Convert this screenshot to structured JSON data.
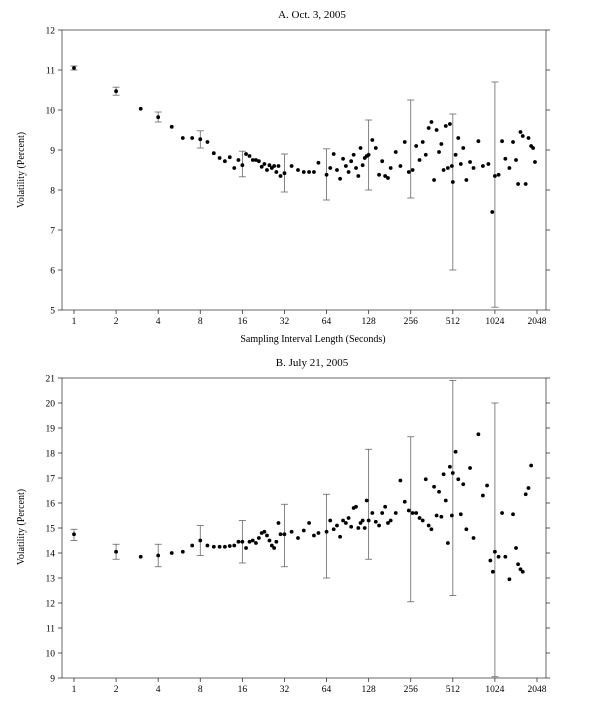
{
  "chart_data": [
    {
      "type": "scatter",
      "title": "A. Oct. 3, 2005",
      "xlabel": "Sampling Interval Length (Seconds)",
      "ylabel": "Volatility (Percent)",
      "x_scale": "log2",
      "xlim": [
        1,
        2048
      ],
      "ylim": [
        5,
        12
      ],
      "xticks": [
        1,
        2,
        4,
        8,
        16,
        32,
        64,
        128,
        256,
        512,
        1024,
        2048
      ],
      "yticks": [
        5,
        6,
        7,
        8,
        9,
        10,
        11,
        12
      ],
      "grid": false,
      "points": [
        [
          1,
          11.05
        ],
        [
          2,
          10.47
        ],
        [
          3,
          10.03
        ],
        [
          4,
          9.82
        ],
        [
          5,
          9.58
        ],
        [
          6,
          9.3
        ],
        [
          7,
          9.3
        ],
        [
          8,
          9.27
        ],
        [
          9,
          9.2
        ],
        [
          10,
          8.92
        ],
        [
          11,
          8.8
        ],
        [
          12,
          8.72
        ],
        [
          13,
          8.82
        ],
        [
          14,
          8.55
        ],
        [
          15,
          8.75
        ],
        [
          16,
          8.62
        ],
        [
          17,
          8.9
        ],
        [
          18,
          8.85
        ],
        [
          19,
          8.75
        ],
        [
          20,
          8.75
        ],
        [
          21,
          8.72
        ],
        [
          22,
          8.58
        ],
        [
          23,
          8.65
        ],
        [
          24,
          8.5
        ],
        [
          25,
          8.62
        ],
        [
          26,
          8.55
        ],
        [
          27,
          8.6
        ],
        [
          28,
          8.45
        ],
        [
          29,
          8.6
        ],
        [
          30,
          8.35
        ],
        [
          32,
          8.42
        ],
        [
          36,
          8.6
        ],
        [
          40,
          8.5
        ],
        [
          44,
          8.45
        ],
        [
          48,
          8.45
        ],
        [
          52,
          8.45
        ],
        [
          56,
          8.68
        ],
        [
          64,
          8.38
        ],
        [
          68,
          8.55
        ],
        [
          72,
          8.9
        ],
        [
          76,
          8.5
        ],
        [
          80,
          8.28
        ],
        [
          84,
          8.78
        ],
        [
          88,
          8.6
        ],
        [
          92,
          8.45
        ],
        [
          96,
          8.72
        ],
        [
          100,
          8.88
        ],
        [
          104,
          8.55
        ],
        [
          108,
          8.35
        ],
        [
          112,
          9.05
        ],
        [
          116,
          8.62
        ],
        [
          120,
          8.8
        ],
        [
          124,
          8.85
        ],
        [
          128,
          8.88
        ],
        [
          136,
          9.25
        ],
        [
          144,
          9.05
        ],
        [
          152,
          8.38
        ],
        [
          160,
          8.72
        ],
        [
          168,
          8.35
        ],
        [
          176,
          8.3
        ],
        [
          184,
          8.55
        ],
        [
          200,
          8.95
        ],
        [
          216,
          8.6
        ],
        [
          232,
          9.2
        ],
        [
          248,
          8.45
        ],
        [
          264,
          8.5
        ],
        [
          280,
          9.1
        ],
        [
          296,
          8.75
        ],
        [
          312,
          9.2
        ],
        [
          328,
          8.88
        ],
        [
          344,
          9.55
        ],
        [
          360,
          9.7
        ],
        [
          376,
          8.25
        ],
        [
          392,
          9.5
        ],
        [
          408,
          8.95
        ],
        [
          424,
          9.15
        ],
        [
          440,
          8.5
        ],
        [
          456,
          9.6
        ],
        [
          472,
          8.55
        ],
        [
          488,
          9.65
        ],
        [
          504,
          8.6
        ],
        [
          512,
          8.2
        ],
        [
          536,
          8.88
        ],
        [
          560,
          9.3
        ],
        [
          584,
          8.65
        ],
        [
          608,
          9.05
        ],
        [
          640,
          8.25
        ],
        [
          680,
          8.7
        ],
        [
          720,
          8.55
        ],
        [
          780,
          9.22
        ],
        [
          840,
          8.6
        ],
        [
          920,
          8.65
        ],
        [
          980,
          7.45
        ],
        [
          1024,
          8.35
        ],
        [
          1088,
          8.38
        ],
        [
          1152,
          9.22
        ],
        [
          1216,
          8.78
        ],
        [
          1300,
          8.55
        ],
        [
          1380,
          9.2
        ],
        [
          1450,
          8.75
        ],
        [
          1500,
          8.15
        ],
        [
          1560,
          9.45
        ],
        [
          1620,
          9.35
        ],
        [
          1700,
          8.15
        ],
        [
          1780,
          9.3
        ],
        [
          1860,
          9.1
        ],
        [
          1920,
          9.05
        ],
        [
          1980,
          8.7
        ]
      ],
      "error_bars": [
        {
          "x": 1,
          "low": 11.0,
          "high": 11.1
        },
        {
          "x": 2,
          "low": 10.37,
          "high": 10.57
        },
        {
          "x": 4,
          "low": 9.7,
          "high": 9.95
        },
        {
          "x": 8,
          "low": 9.05,
          "high": 9.48
        },
        {
          "x": 16,
          "low": 8.33,
          "high": 8.97
        },
        {
          "x": 32,
          "low": 7.95,
          "high": 8.9
        },
        {
          "x": 64,
          "low": 7.75,
          "high": 9.03
        },
        {
          "x": 128,
          "low": 8.0,
          "high": 9.75
        },
        {
          "x": 256,
          "low": 7.8,
          "high": 10.25
        },
        {
          "x": 512,
          "low": 6.0,
          "high": 9.9
        },
        {
          "x": 1024,
          "low": 5.07,
          "high": 10.7
        }
      ]
    },
    {
      "type": "scatter",
      "title": "B. July 21, 2005",
      "xlabel": "",
      "ylabel": "Volatility (Percent)",
      "x_scale": "log2",
      "xlim": [
        1,
        2048
      ],
      "ylim": [
        9,
        21
      ],
      "xticks": [
        1,
        2,
        4,
        8,
        16,
        32,
        64,
        128,
        256,
        512,
        1024,
        2048
      ],
      "yticks": [
        9,
        10,
        11,
        12,
        13,
        14,
        15,
        16,
        17,
        18,
        19,
        20,
        21
      ],
      "grid": false,
      "points": [
        [
          1,
          14.75
        ],
        [
          2,
          14.05
        ],
        [
          3,
          13.85
        ],
        [
          4,
          13.9
        ],
        [
          5,
          14.0
        ],
        [
          6,
          14.05
        ],
        [
          7,
          14.3
        ],
        [
          8,
          14.5
        ],
        [
          9,
          14.3
        ],
        [
          10,
          14.25
        ],
        [
          11,
          14.25
        ],
        [
          12,
          14.25
        ],
        [
          13,
          14.28
        ],
        [
          14,
          14.3
        ],
        [
          15,
          14.45
        ],
        [
          16,
          14.45
        ],
        [
          17,
          14.2
        ],
        [
          18,
          14.45
        ],
        [
          19,
          14.5
        ],
        [
          20,
          14.4
        ],
        [
          21,
          14.6
        ],
        [
          22,
          14.8
        ],
        [
          23,
          14.85
        ],
        [
          24,
          14.7
        ],
        [
          25,
          14.5
        ],
        [
          26,
          14.3
        ],
        [
          27,
          14.2
        ],
        [
          28,
          14.45
        ],
        [
          29,
          15.2
        ],
        [
          30,
          14.75
        ],
        [
          32,
          14.75
        ],
        [
          36,
          14.85
        ],
        [
          40,
          14.6
        ],
        [
          44,
          14.9
        ],
        [
          48,
          15.2
        ],
        [
          52,
          14.7
        ],
        [
          56,
          14.8
        ],
        [
          64,
          14.85
        ],
        [
          68,
          15.3
        ],
        [
          72,
          14.95
        ],
        [
          76,
          15.1
        ],
        [
          80,
          14.65
        ],
        [
          84,
          15.3
        ],
        [
          88,
          15.2
        ],
        [
          92,
          15.4
        ],
        [
          96,
          15.05
        ],
        [
          100,
          15.8
        ],
        [
          104,
          15.85
        ],
        [
          108,
          15.0
        ],
        [
          112,
          15.2
        ],
        [
          116,
          15.3
        ],
        [
          120,
          15.0
        ],
        [
          124,
          16.1
        ],
        [
          128,
          15.3
        ],
        [
          136,
          15.6
        ],
        [
          144,
          15.25
        ],
        [
          152,
          15.1
        ],
        [
          160,
          15.6
        ],
        [
          168,
          15.85
        ],
        [
          176,
          15.2
        ],
        [
          184,
          15.3
        ],
        [
          200,
          15.6
        ],
        [
          216,
          16.9
        ],
        [
          232,
          16.05
        ],
        [
          248,
          15.7
        ],
        [
          264,
          15.6
        ],
        [
          280,
          15.6
        ],
        [
          296,
          15.4
        ],
        [
          312,
          15.3
        ],
        [
          328,
          16.95
        ],
        [
          344,
          15.1
        ],
        [
          360,
          14.95
        ],
        [
          376,
          16.65
        ],
        [
          392,
          15.5
        ],
        [
          408,
          16.45
        ],
        [
          424,
          15.45
        ],
        [
          440,
          17.15
        ],
        [
          456,
          16.1
        ],
        [
          472,
          14.4
        ],
        [
          488,
          17.45
        ],
        [
          504,
          15.5
        ],
        [
          512,
          17.2
        ],
        [
          536,
          18.05
        ],
        [
          560,
          16.95
        ],
        [
          584,
          15.55
        ],
        [
          608,
          16.75
        ],
        [
          640,
          14.95
        ],
        [
          680,
          17.4
        ],
        [
          720,
          14.6
        ],
        [
          780,
          18.75
        ],
        [
          840,
          16.3
        ],
        [
          900,
          16.7
        ],
        [
          950,
          13.7
        ],
        [
          990,
          13.25
        ],
        [
          1024,
          14.05
        ],
        [
          1088,
          13.85
        ],
        [
          1152,
          15.6
        ],
        [
          1216,
          13.85
        ],
        [
          1300,
          12.95
        ],
        [
          1380,
          15.55
        ],
        [
          1450,
          14.2
        ],
        [
          1500,
          13.55
        ],
        [
          1560,
          13.35
        ],
        [
          1620,
          13.25
        ],
        [
          1700,
          16.35
        ],
        [
          1780,
          16.6
        ],
        [
          1860,
          17.5
        ]
      ],
      "error_bars": [
        {
          "x": 1,
          "low": 14.5,
          "high": 14.95
        },
        {
          "x": 2,
          "low": 13.75,
          "high": 14.35
        },
        {
          "x": 4,
          "low": 13.45,
          "high": 14.35
        },
        {
          "x": 8,
          "low": 13.9,
          "high": 15.1
        },
        {
          "x": 16,
          "low": 13.6,
          "high": 15.3
        },
        {
          "x": 32,
          "low": 13.45,
          "high": 15.95
        },
        {
          "x": 64,
          "low": 13.0,
          "high": 16.35
        },
        {
          "x": 128,
          "low": 13.75,
          "high": 18.15
        },
        {
          "x": 256,
          "low": 12.05,
          "high": 18.65
        },
        {
          "x": 512,
          "low": 12.3,
          "high": 20.9
        },
        {
          "x": 1024,
          "low": 9.05,
          "high": 20.0
        }
      ]
    }
  ]
}
